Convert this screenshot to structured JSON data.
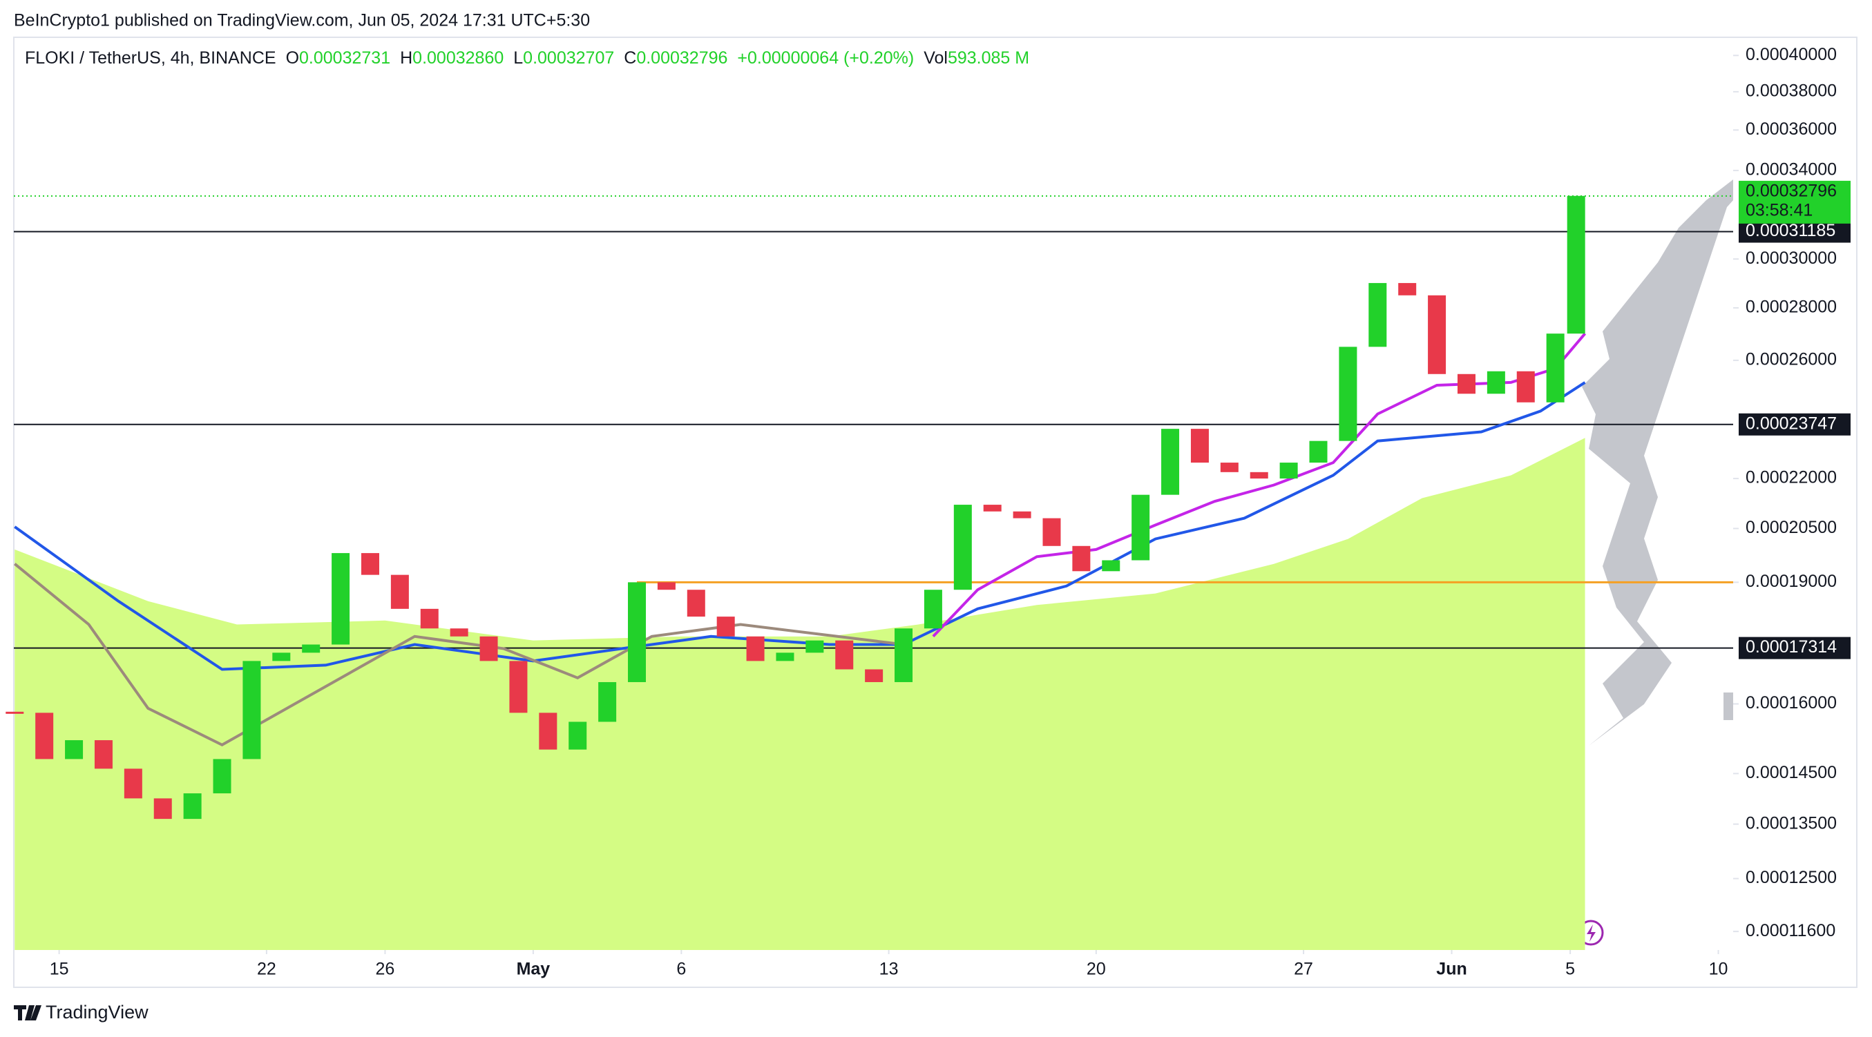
{
  "header": {
    "published": "BeInCrypto1 published on TradingView.com, Jun 05, 2024 17:31 UTC+5:30"
  },
  "legend": {
    "symbol": "FLOKI / TetherUS, 4h, BINANCE",
    "o": "O",
    "open": "0.00032731",
    "h": "H",
    "high": "0.00032860",
    "l": "L",
    "low": "0.00032707",
    "c": "C",
    "close": "0.00032796",
    "change": "+0.00000064 (+0.20%)",
    "vol": "Vol",
    "volume": "593.085 M"
  },
  "chart_data": {
    "type": "candlestick",
    "scale": "log",
    "up_color": "#22d12a",
    "down_color": "#e8394a",
    "x": [
      13.5,
      14.5,
      15.5,
      16.5,
      17.5,
      18.5,
      19.5,
      20.5,
      21.5,
      22.5,
      23.5,
      24.5,
      25.5,
      26.5,
      27.5,
      28.5,
      29.5,
      30.5,
      31.5,
      32.5,
      33.5,
      34.5,
      35.5,
      36.5,
      37.5,
      38.5,
      39.5,
      40.5,
      41.5,
      42.5,
      43.5,
      44.5,
      45.5,
      46.5,
      47.5,
      48.5,
      49.5,
      50.5,
      51.5,
      52.5,
      53.5,
      54.5,
      55.5,
      56.5,
      57.5,
      58.5,
      59.5,
      60.5,
      61.5,
      62.5,
      63.5,
      64.5,
      65.5,
      66.2
    ],
    "values": [
      0.000158,
      0.000148,
      0.000152,
      0.000146,
      0.00014,
      0.000136,
      0.000141,
      0.000148,
      0.00017,
      0.000172,
      0.000174,
      0.000198,
      0.000192,
      0.000183,
      0.000178,
      0.000176,
      0.00017,
      0.000158,
      0.00015,
      0.000156,
      0.000165,
      0.00019,
      0.000188,
      0.000181,
      0.000176,
      0.00017,
      0.000172,
      0.000175,
      0.000168,
      0.000165,
      0.000178,
      0.000188,
      0.000212,
      0.00021,
      0.000208,
      0.0002,
      0.000193,
      0.000196,
      0.000215,
      0.000236,
      0.000225,
      0.000222,
      0.00022,
      0.000225,
      0.000232,
      0.000265,
      0.00029,
      0.000285,
      0.000255,
      0.000248,
      0.000256,
      0.000245,
      0.00027,
      0.000328
    ],
    "area": {
      "color": "#d4fc84",
      "x": [
        13.5,
        18,
        21,
        26,
        31,
        36,
        41,
        44,
        48,
        52,
        56,
        58.5,
        61,
        64,
        66.5
      ],
      "values": [
        0.000199,
        0.000185,
        0.000179,
        0.00018,
        0.000175,
        0.000176,
        0.000176,
        0.000179,
        0.000184,
        0.000187,
        0.000195,
        0.000202,
        0.000214,
        0.000221,
        0.000233
      ]
    },
    "lines": [
      {
        "color": "#2157e8",
        "x": [
          13.5,
          17,
          20.5,
          24,
          27,
          31,
          34,
          37,
          41,
          43.5,
          46,
          49,
          52,
          55,
          58,
          59.5,
          63,
          65,
          66.5
        ],
        "values": [
          0.0002055,
          0.000185,
          0.000168,
          0.000169,
          0.000174,
          0.00017,
          0.000173,
          0.000176,
          0.000174,
          0.000174,
          0.000183,
          0.000189,
          0.000202,
          0.000208,
          0.000221,
          0.000232,
          0.000235,
          0.000242,
          0.000252
        ]
      },
      {
        "color": "#c424e8",
        "x": [
          44.5,
          46,
          48,
          50,
          52,
          54,
          56,
          58,
          59.5,
          61.5,
          64,
          65.5,
          66.5
        ],
        "values": [
          0.000176,
          0.000188,
          0.000197,
          0.000199,
          0.000206,
          0.000213,
          0.000218,
          0.000225,
          0.000241,
          0.000251,
          0.000252,
          0.000257,
          0.00027
        ]
      },
      {
        "color": "#9c8a7c",
        "x": [
          13.5,
          16,
          18,
          20.5,
          24,
          27,
          30,
          32.5,
          35,
          38,
          43.5
        ],
        "values": [
          0.000195,
          0.000179,
          0.000159,
          0.000151,
          0.000164,
          0.000176,
          0.000173,
          0.000166,
          0.000176,
          0.000179,
          0.000174
        ]
      }
    ],
    "levels": [
      {
        "value": 0.00031185,
        "label": "0.00031185",
        "color": "#131722"
      },
      {
        "value": 0.00023747,
        "label": "0.00023747",
        "color": "#131722"
      },
      {
        "value": 0.00017314,
        "label": "0.00017314",
        "color": "#131722"
      }
    ],
    "orange_level": {
      "value": 0.00019,
      "from": 34.5,
      "color": "#f5a023"
    },
    "last_price": {
      "value": 0.00032796,
      "label": "0.00032796",
      "countdown": "03:58:41",
      "color": "#22d12a"
    },
    "xlim": [
      13.47,
      71.5
    ],
    "xticks": [
      {
        "value": 15,
        "label": "15"
      },
      {
        "value": 22,
        "label": "22"
      },
      {
        "value": 26,
        "label": "26"
      },
      {
        "value": 31,
        "label": "May"
      },
      {
        "value": 36,
        "label": "6"
      },
      {
        "value": 43,
        "label": "13"
      },
      {
        "value": 50,
        "label": "20"
      },
      {
        "value": 57,
        "label": "27"
      },
      {
        "value": 62,
        "label": "Jun"
      },
      {
        "value": 66,
        "label": "5"
      },
      {
        "value": 71,
        "label": "10"
      }
    ],
    "ylim": [
      0.000113,
      0.00041
    ],
    "yticks": [
      {
        "value": 0.0004,
        "label": "0.00040000"
      },
      {
        "value": 0.00038,
        "label": "0.00038000"
      },
      {
        "value": 0.00036,
        "label": "0.00036000"
      },
      {
        "value": 0.00034,
        "label": "0.00034000"
      },
      {
        "value": 0.0003,
        "label": "0.00030000"
      },
      {
        "value": 0.00028,
        "label": "0.00028000"
      },
      {
        "value": 0.00026,
        "label": "0.00026000"
      },
      {
        "value": 0.00022,
        "label": "0.00022000"
      },
      {
        "value": 0.000205,
        "label": "0.00020500"
      },
      {
        "value": 0.00019,
        "label": "0.00019000"
      },
      {
        "value": 0.00016,
        "label": "0.00016000"
      },
      {
        "value": 0.000145,
        "label": "0.00014500"
      },
      {
        "value": 0.000135,
        "label": "0.00013500"
      },
      {
        "value": 0.000125,
        "label": "0.00012500"
      },
      {
        "value": 0.000116,
        "label": "0.00011600"
      }
    ]
  },
  "footer": {
    "brand": "TradingView"
  }
}
